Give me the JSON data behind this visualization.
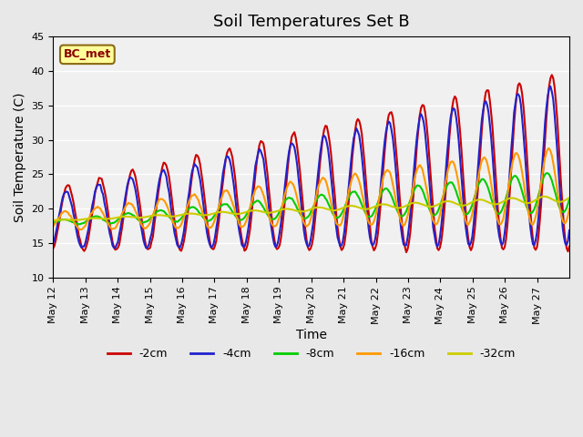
{
  "title": "Soil Temperatures Set B",
  "xlabel": "Time",
  "ylabel": "Soil Temperature (C)",
  "ylim": [
    10,
    45
  ],
  "n_days": 16,
  "annotation": "BC_met",
  "series_names": [
    "-2cm",
    "-4cm",
    "-8cm",
    "-16cm",
    "-32cm"
  ],
  "series_colors": [
    "#cc0000",
    "#2222cc",
    "#00cc00",
    "#ff9900",
    "#cccc00"
  ],
  "series_lw": [
    1.5,
    1.5,
    1.5,
    1.5,
    1.5
  ],
  "xtick_labels": [
    "May 12",
    "May 13",
    "May 14",
    "May 15",
    "May 16",
    "May 17",
    "May 18",
    "May 19",
    "May 20",
    "May 21",
    "May 22",
    "May 23",
    "May 24",
    "May 25",
    "May 26",
    "May 27"
  ],
  "background_color": "#e8e8e8",
  "plot_bg_color": "#f0f0f0",
  "title_fontsize": 13,
  "axis_label_fontsize": 10,
  "tick_fontsize": 8
}
